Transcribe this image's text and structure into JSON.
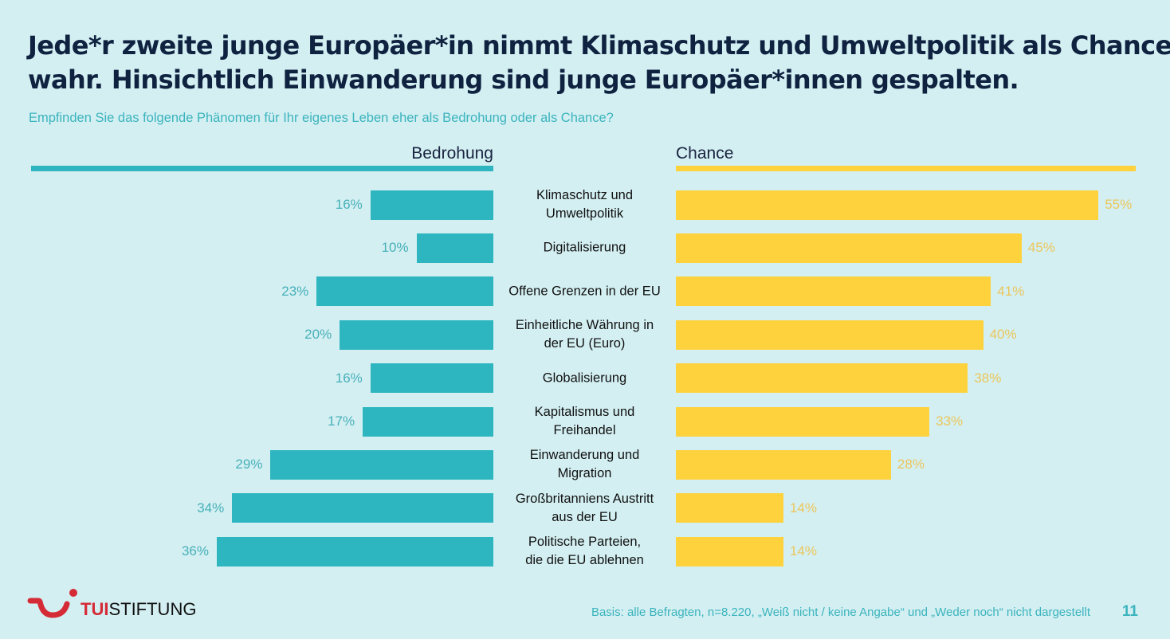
{
  "header": {
    "title_line1": "Jede*r zweite junge Europäer*in nimmt Klimaschutz und Umweltpolitik als Chance",
    "title_line2": "wahr. Hinsichtlich Einwanderung sind junge Europäer*innen gespalten.",
    "subtitle": "Empfinden Sie das folgende Phänomen für Ihr eigenes Leben eher als Bedrohung oder als Chance?"
  },
  "colors": {
    "threat": "#2eb6c0",
    "chance": "#fed23d",
    "background": "#d3eff2",
    "title": "#0f2240",
    "brand_red": "#d52b36"
  },
  "chart_data": {
    "type": "bar",
    "orientation": "horizontal-diverging",
    "title": "Jede*r zweite junge Europäer*in nimmt Klimaschutz und Umweltpolitik als Chance wahr. Hinsichtlich Einwanderung sind junge Europäer*innen gespalten.",
    "subtitle": "Empfinden Sie das folgende Phänomen für Ihr eigenes Leben eher als Bedrohung oder als Chance?",
    "xlabel": "",
    "ylabel": "",
    "unit": "%",
    "xlim": [
      0,
      60
    ],
    "grid": false,
    "legend": "top",
    "categories": [
      "Klimaschutz und\nUmweltpolitik",
      "Digitalisierung",
      "Offene Grenzen in der EU",
      "Einheitliche Währung in\nder EU (Euro)",
      "Globalisierung",
      "Kapitalismus und\nFreihandel",
      "Einwanderung und\nMigration",
      "Großbritanniens Austritt\naus der EU",
      "Politische Parteien,\ndie die EU ablehnen"
    ],
    "series": [
      {
        "name": "Bedrohung",
        "side": "left",
        "values": [
          16,
          10,
          23,
          20,
          16,
          17,
          29,
          34,
          36
        ]
      },
      {
        "name": "Chance",
        "side": "right",
        "values": [
          55,
          45,
          41,
          40,
          38,
          33,
          28,
          14,
          14
        ]
      }
    ]
  },
  "footer": {
    "logo_brand": "TUI",
    "logo_name": "STIFTUNG",
    "footnote": "Basis: alle Befragten, n=8.220, „Weiß nicht / keine Angabe“ und „Weder noch“ nicht dargestellt",
    "page_number": "11"
  }
}
